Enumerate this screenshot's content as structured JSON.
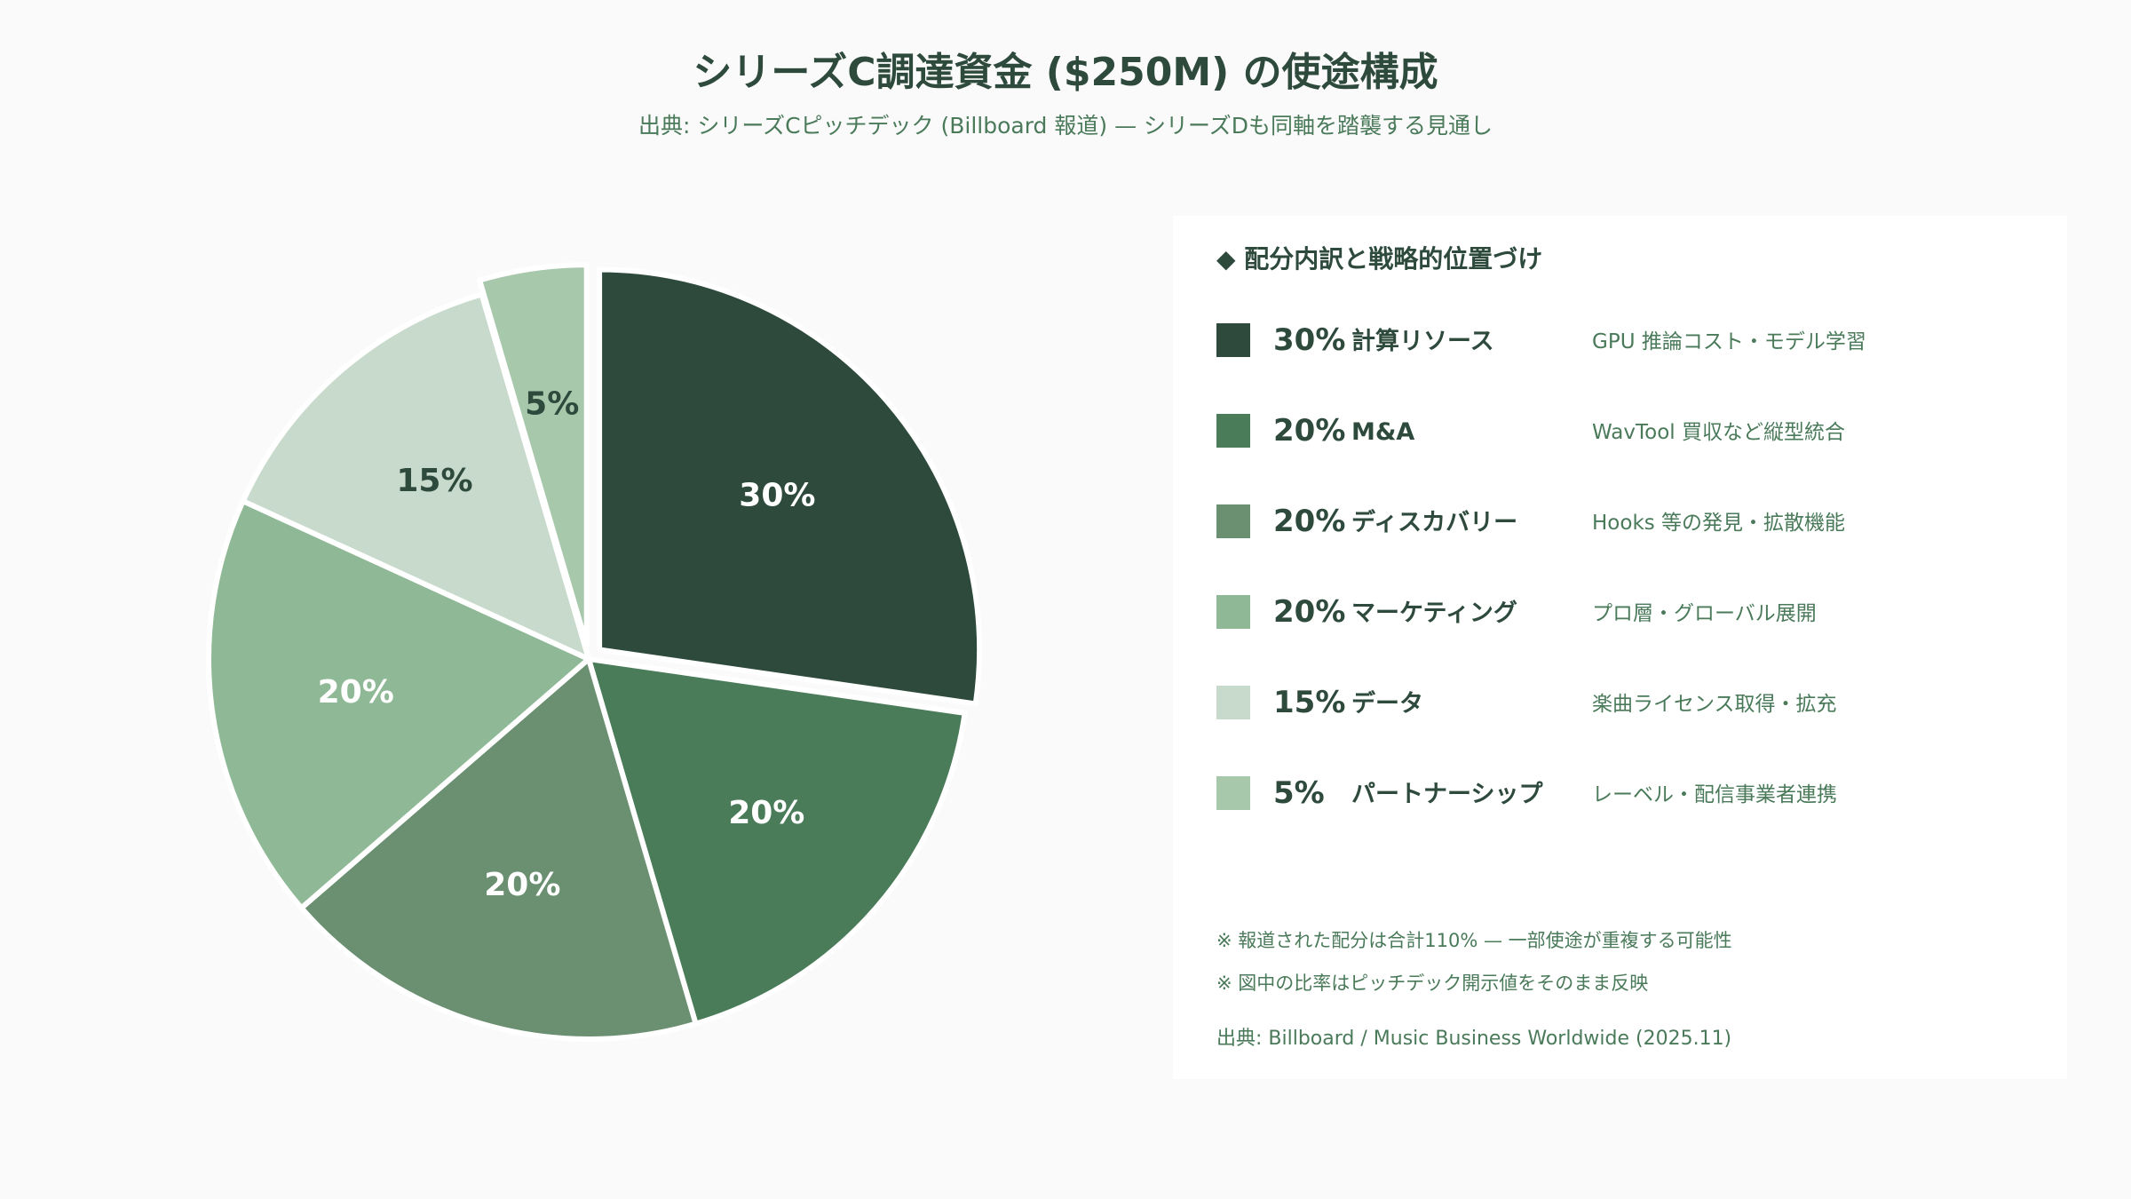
{
  "title": "シリーズC調達資金 ($250M) の使途構成",
  "subtitle": "出典: シリーズCピッチデック (Billboard 報道) — シリーズDも同軸を踏襲する見通し",
  "legend": {
    "heading": "◆ 配分内訳と戦略的位置づけ",
    "items": [
      {
        "pct": "30%",
        "label": "計算リソース",
        "desc": "GPU 推論コスト・モデル学習"
      },
      {
        "pct": "20%",
        "label": "M&A",
        "desc": "WavTool 買収など縦型統合"
      },
      {
        "pct": "20%",
        "label": "ディスカバリー",
        "desc": "Hooks 等の発見・拡散機能"
      },
      {
        "pct": "20%",
        "label": "マーケティング",
        "desc": "プロ層・グローバル展開"
      },
      {
        "pct": "15%",
        "label": "データ",
        "desc": "楽曲ライセンス取得・拡充"
      },
      {
        "pct": "5%",
        "label": "パートナーシップ",
        "desc": "レーベル・配信事業者連携"
      }
    ],
    "notes": [
      "※ 報道された配分は合計110% — 一部使途が重複する可能性",
      "※ 図中の比率はピッチデック開示値をそのまま反映"
    ],
    "source": "出典: Billboard / Music Business Worldwide (2025.11)"
  },
  "chart_data": {
    "type": "pie",
    "title": "シリーズC調達資金 ($250M) の使途構成",
    "categories": [
      "計算リソース",
      "M&A",
      "ディスカバリー",
      "マーケティング",
      "データ",
      "パートナーシップ"
    ],
    "values": [
      30,
      20,
      20,
      20,
      15,
      5
    ],
    "labels": [
      "30%",
      "20%",
      "20%",
      "20%",
      "15%",
      "5%"
    ],
    "colors": [
      "#2e4a3d",
      "#4a7c59",
      "#6b8f71",
      "#8fb996",
      "#c8dacb",
      "#a8c8ac"
    ],
    "label_colors": [
      "#ffffff",
      "#ffffff",
      "#ffffff",
      "#ffffff",
      "#2e4a3d",
      "#2e4a3d"
    ],
    "exploded": [
      "計算リソース",
      "パートナーシップ"
    ],
    "start_angle_deg": 0,
    "direction": "clockwise",
    "legend_position": "right"
  }
}
